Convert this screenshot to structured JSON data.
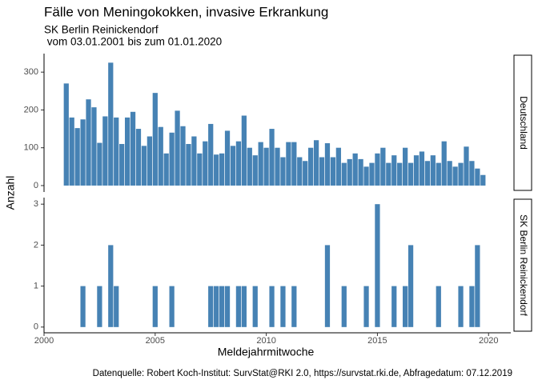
{
  "chart_data": {
    "type": "bar",
    "title": "Fälle von Meningokokken, invasive Erkrankung",
    "subtitle": [
      "SK Berlin Reinickendorf",
      " vom 03.01.2001 bis zum 01.01.2020"
    ],
    "x_label": "Meldejahrmitwoche",
    "y_label": "Anzahl",
    "caption": "Datenquelle: Robert Koch-Institut: SurvStat@RKI 2.0, https://survstat.rki.de, Abfragedatum: 07.12.2019",
    "color": "#4682b4",
    "xlim": [
      2000,
      2021
    ],
    "xticks": [
      2000,
      2005,
      2010,
      2015,
      2020
    ],
    "panels": [
      {
        "label": "Deutschland",
        "x": [
          2001,
          2001.25,
          2001.5,
          2001.75,
          2002,
          2002.25,
          2002.5,
          2002.75,
          2003,
          2003.25,
          2003.5,
          2003.75,
          2004,
          2004.25,
          2004.5,
          2004.75,
          2005,
          2005.25,
          2005.5,
          2005.75,
          2006,
          2006.25,
          2006.5,
          2006.75,
          2007,
          2007.25,
          2007.5,
          2007.75,
          2008,
          2008.25,
          2008.5,
          2008.75,
          2009,
          2009.25,
          2009.5,
          2009.75,
          2010,
          2010.25,
          2010.5,
          2010.75,
          2011,
          2011.25,
          2011.5,
          2011.75,
          2012,
          2012.25,
          2012.5,
          2012.75,
          2013,
          2013.25,
          2013.5,
          2013.75,
          2014,
          2014.25,
          2014.5,
          2014.75,
          2015,
          2015.25,
          2015.5,
          2015.75,
          2016,
          2016.25,
          2016.5,
          2016.75,
          2017,
          2017.25,
          2017.5,
          2017.75,
          2018,
          2018.25,
          2018.5,
          2018.75,
          2019,
          2019.25,
          2019.5,
          2019.75
        ],
        "values": [
          270,
          180,
          152,
          175,
          228,
          207,
          113,
          183,
          325,
          180,
          110,
          180,
          195,
          150,
          105,
          130,
          245,
          155,
          85,
          140,
          198,
          157,
          110,
          130,
          85,
          117,
          163,
          82,
          85,
          145,
          105,
          117,
          185,
          100,
          80,
          115,
          100,
          150,
          100,
          75,
          115,
          115,
          75,
          65,
          100,
          120,
          75,
          112,
          75,
          100,
          60,
          70,
          85,
          70,
          50,
          60,
          85,
          100,
          60,
          80,
          60,
          100,
          60,
          80,
          90,
          65,
          80,
          60,
          117,
          65,
          50,
          60,
          103,
          65,
          45,
          28
        ],
        "ylim": [
          -17,
          349
        ],
        "yticks": [
          0,
          100,
          200,
          300
        ]
      },
      {
        "label": "SK Berlin Reinickendorf",
        "x": [
          2001.75,
          2002.5,
          2003,
          2003.25,
          2005,
          2005.75,
          2007.5,
          2007.75,
          2008,
          2008.25,
          2008.75,
          2009,
          2009.5,
          2010.25,
          2010.75,
          2011.25,
          2012.75,
          2013.5,
          2014.5,
          2015,
          2015.75,
          2016.25,
          2016.5,
          2017.75,
          2018.75,
          2019.25,
          2019.5
        ],
        "values": [
          1,
          1,
          2,
          1,
          1,
          1,
          1,
          1,
          1,
          1,
          1,
          1,
          1,
          1,
          1,
          1,
          2,
          1,
          1,
          3,
          1,
          1,
          2,
          1,
          1,
          1,
          2
        ],
        "ylim": [
          -0.14,
          3.16
        ],
        "yticks": [
          0,
          1,
          2,
          3
        ]
      }
    ]
  }
}
